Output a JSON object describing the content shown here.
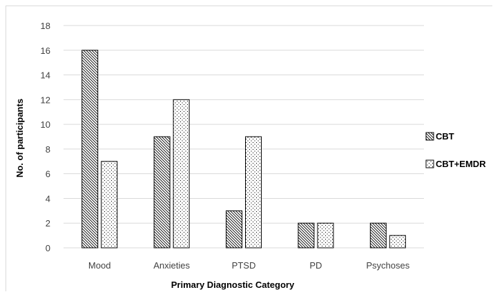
{
  "chart_data": {
    "type": "bar",
    "title": "",
    "xlabel": "Primary Diagnostic Category",
    "ylabel": "No. of participants",
    "categories": [
      "Mood",
      "Anxieties",
      "PTSD",
      "PD",
      "Psychoses"
    ],
    "series": [
      {
        "name": "CBT",
        "values": [
          16,
          9,
          3,
          2,
          2
        ],
        "pattern": "diagonal-hatch"
      },
      {
        "name": "CBT+EMDR",
        "values": [
          7,
          12,
          9,
          2,
          1
        ],
        "pattern": "dots"
      }
    ],
    "ylim": [
      0,
      18
    ],
    "yticks": [
      0,
      2,
      4,
      6,
      8,
      10,
      12,
      14,
      16,
      18
    ],
    "grid": true,
    "legend": "right",
    "colors": {
      "grid": "#d9d9d9",
      "bar_stroke": "#000000",
      "text": "#404040"
    }
  }
}
